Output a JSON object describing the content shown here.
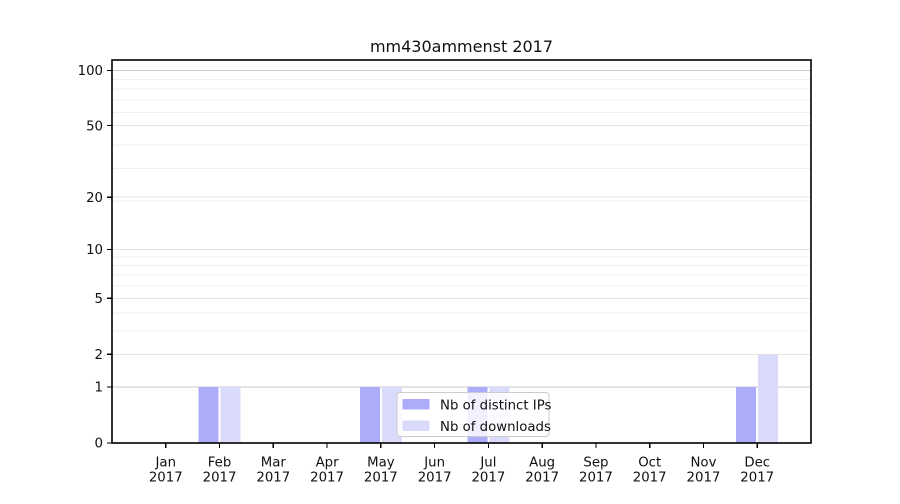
{
  "chart_data": {
    "type": "bar",
    "title": "mm430ammenst 2017",
    "x": [
      "Jan",
      "Feb",
      "Mar",
      "Apr",
      "May",
      "Jun",
      "Jul",
      "Aug",
      "Sep",
      "Oct",
      "Nov",
      "Dec"
    ],
    "x_year": "2017",
    "series": [
      {
        "name": "Nb of distinct IPs",
        "color": "#acacfa",
        "values": [
          0,
          1,
          0,
          0,
          1,
          0,
          1,
          0,
          0,
          0,
          0,
          1
        ]
      },
      {
        "name": "Nb of downloads",
        "color": "#dadafa",
        "values": [
          0,
          1,
          0,
          0,
          1,
          0,
          1,
          0,
          0,
          0,
          0,
          2
        ]
      }
    ],
    "y_ticks": [
      0,
      1,
      2,
      5,
      10,
      20,
      50,
      100
    ],
    "y_scale": "log10(value+1)",
    "ylim": [
      0,
      115
    ],
    "grid": {
      "emphasis_color": "#c8c8c8",
      "major_color": "#e4e4e4",
      "minor_color": "#efefef",
      "emphasized_ticks": [
        1,
        100
      ]
    },
    "legend": {
      "position": "lower center",
      "bg": "#ffffff",
      "border": "#cccccc"
    },
    "frame_color": "#000000",
    "background": "#ffffff"
  }
}
